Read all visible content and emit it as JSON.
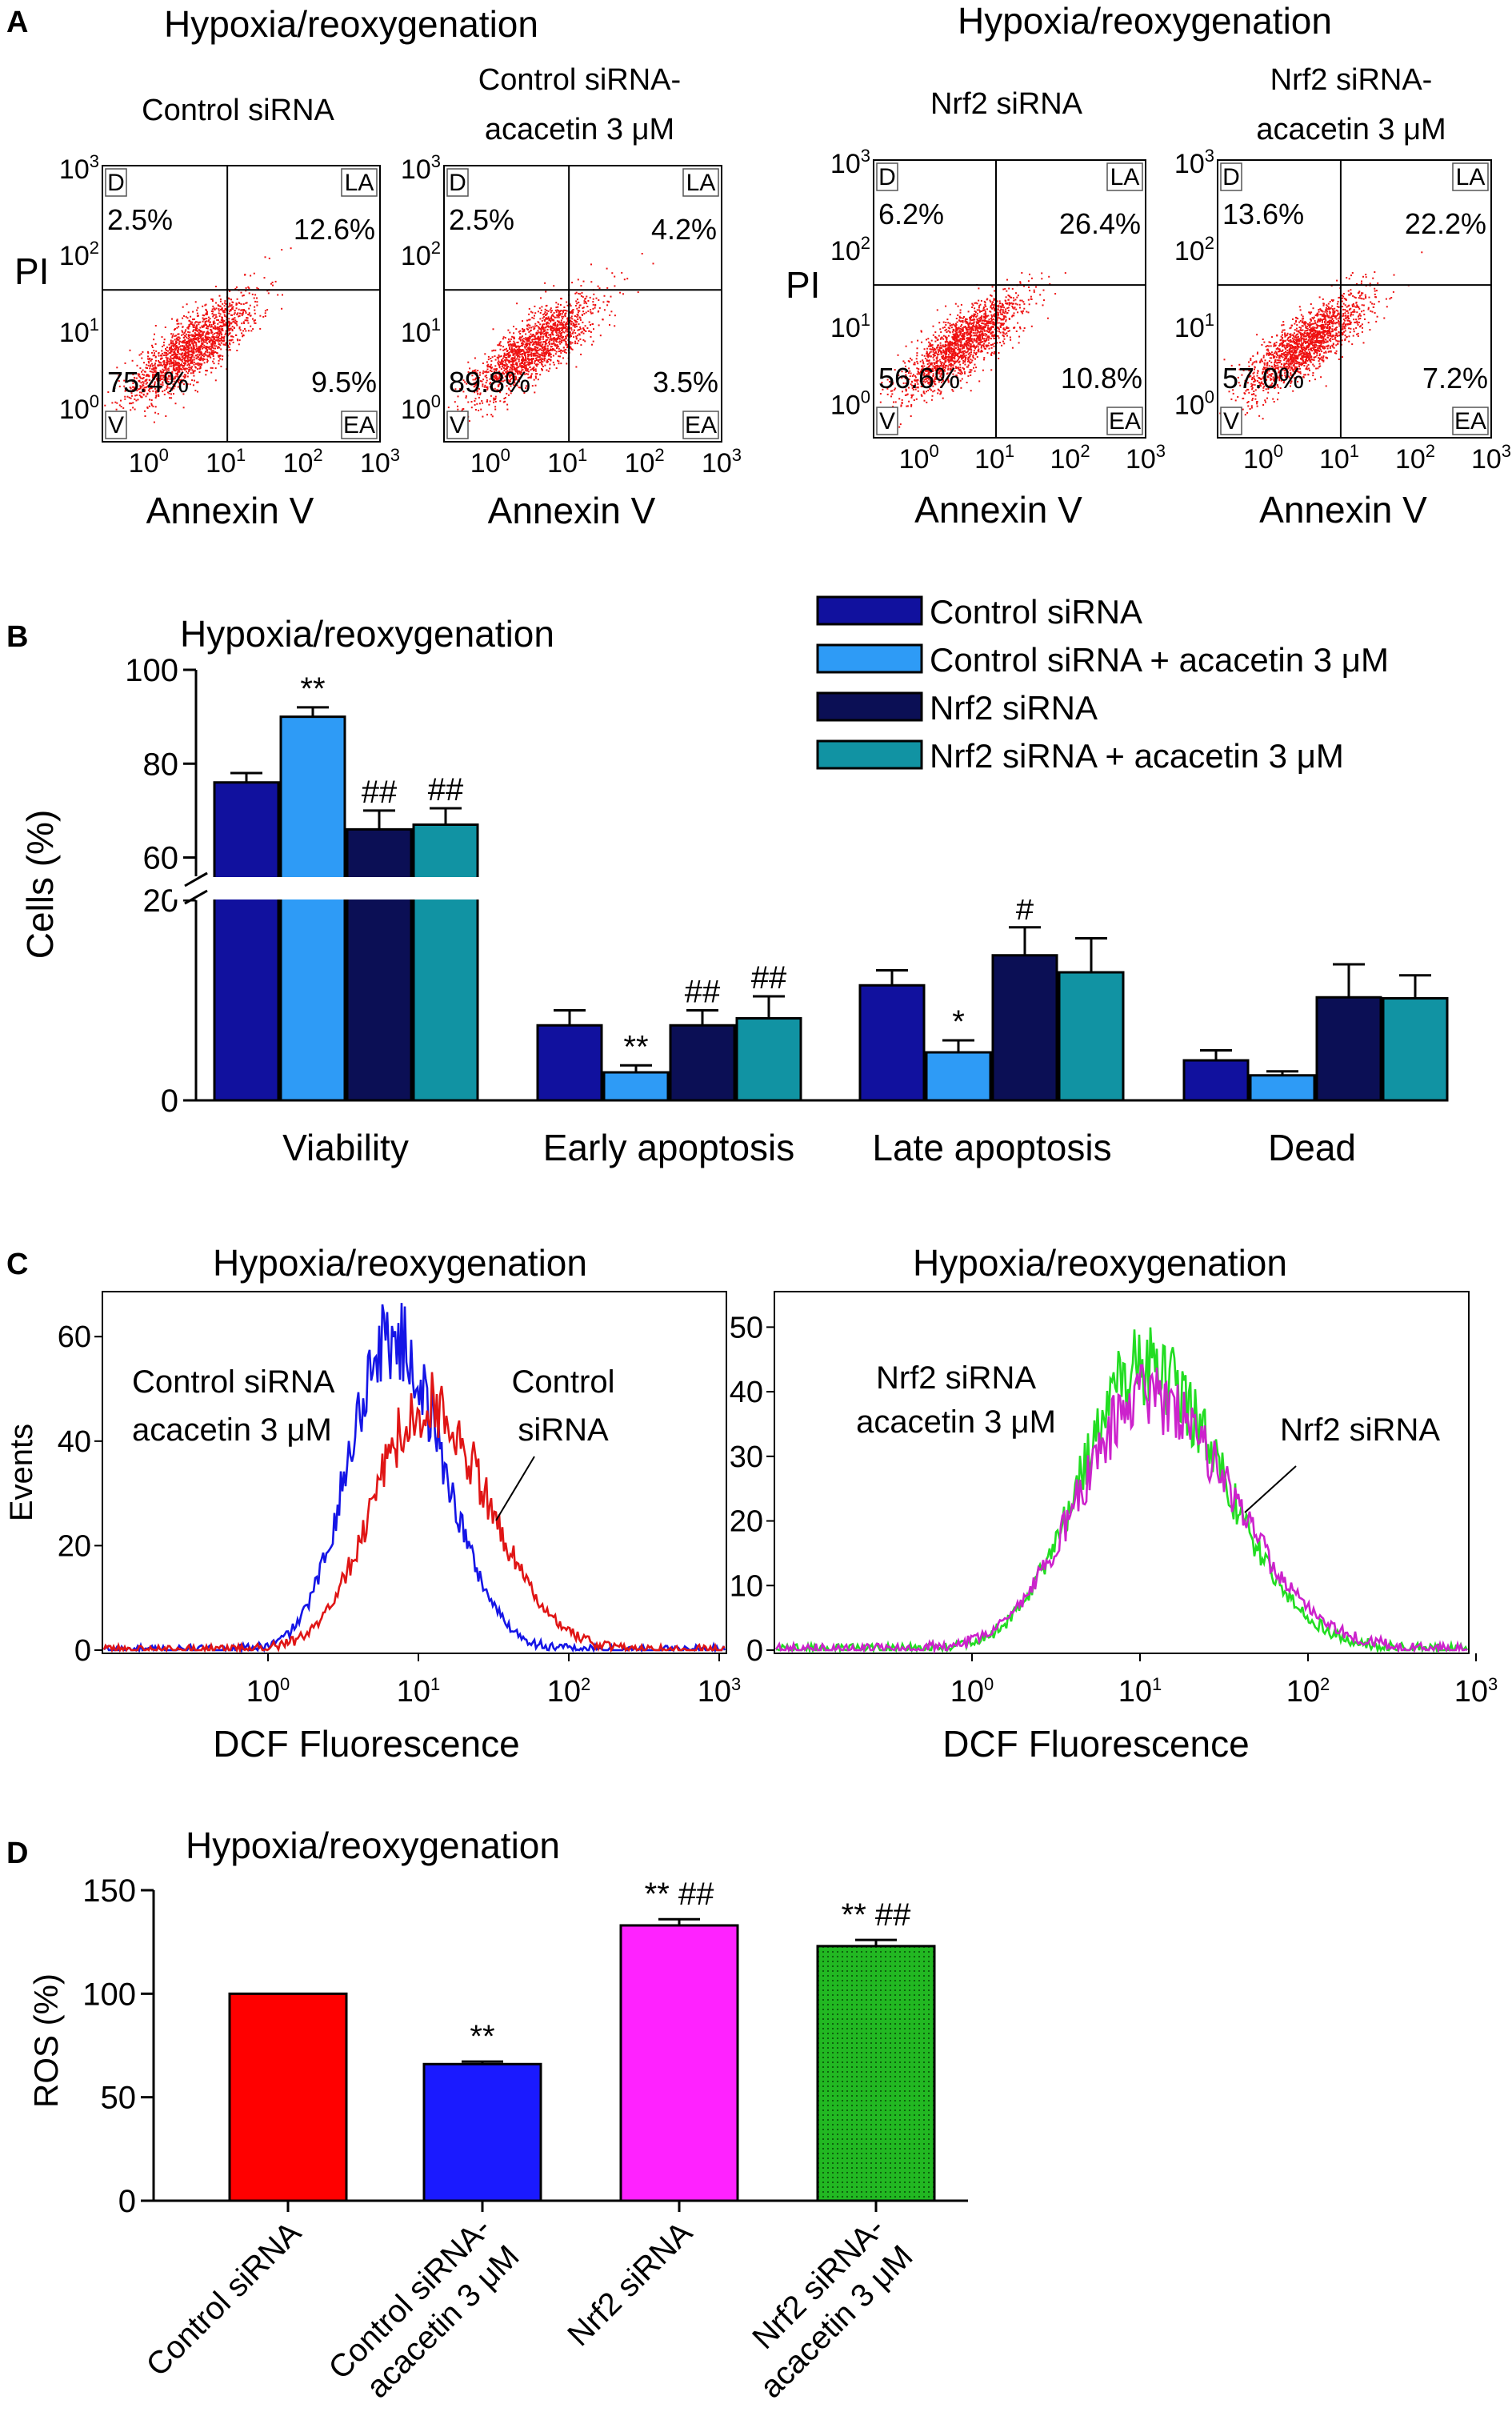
{
  "chart_data": [
    {
      "panel": "A",
      "type": "scatter",
      "group_title": "Hypoxia/reoxygenation",
      "xlabel": "Annexin V",
      "ylabel": "PI",
      "x_ticks": [
        "10",
        "10",
        "10",
        "10"
      ],
      "x_tick_exponents": [
        "0",
        "1",
        "2",
        "3"
      ],
      "y_ticks": [
        "10",
        "10",
        "10",
        "10"
      ],
      "y_tick_exponents": [
        "0",
        "1",
        "2",
        "3"
      ],
      "quadrant_labels": {
        "dead": "D",
        "late": "LA",
        "early": "EA",
        "viable": "V"
      },
      "plots": [
        {
          "title": [
            "Control siRNA"
          ],
          "dead": "2.5%",
          "late": "12.6%",
          "viable": "75.4%",
          "early": "9.5%"
        },
        {
          "title": [
            "Control siRNA-",
            "acacetin 3 μM"
          ],
          "dead": "2.5%",
          "late": "4.2%",
          "viable": "89.8%",
          "early": "3.5%"
        },
        {
          "title": [
            "Nrf2 siRNA"
          ],
          "dead": "6.2%",
          "late": "26.4%",
          "viable": "56.6%",
          "early": "10.8%"
        },
        {
          "title": [
            "Nrf2 siRNA-",
            "acacetin 3 μM"
          ],
          "dead": "13.6%",
          "late": "22.2%",
          "viable": "57.0%",
          "early": "7.2%"
        }
      ]
    },
    {
      "panel": "B",
      "type": "bar",
      "title": "Hypoxia/reoxygenation",
      "ylabel": "Cells (%)",
      "categories": [
        "Viability",
        "Early apoptosis",
        "Late apoptosis",
        "Dead"
      ],
      "y_ticks_upper": [
        "60",
        "80",
        "100"
      ],
      "y_ticks_lower": [
        "0",
        "20"
      ],
      "ylim_lower": [
        0,
        20
      ],
      "ylim_upper": [
        56,
        100
      ],
      "series": [
        {
          "name": "Control siRNA",
          "color": "#11119e",
          "values": [
            76,
            7.5,
            11.5,
            4
          ],
          "errors": [
            2,
            1.5,
            1.5,
            1
          ],
          "annotations": [
            "",
            "",
            "",
            ""
          ]
        },
        {
          "name": "Control siRNA + acacetin 3 μM",
          "color": "#2e9bf6",
          "values": [
            90,
            2.8,
            4.8,
            2.5
          ],
          "errors": [
            2,
            0.7,
            1.2,
            0.4
          ],
          "annotations": [
            "**",
            "**",
            "*",
            ""
          ]
        },
        {
          "name": "Nrf2 siRNA",
          "color": "#0b0f55",
          "values": [
            66,
            7.5,
            14.5,
            10.3
          ],
          "errors": [
            4,
            1.5,
            2.8,
            3.3
          ],
          "annotations": [
            "##",
            "##",
            "#",
            ""
          ]
        },
        {
          "name": "Nrf2 siRNA + acacetin 3 μM",
          "color": "#1193a3",
          "values": [
            67,
            8.2,
            12.8,
            10.2
          ],
          "errors": [
            3.5,
            2.2,
            3.4,
            2.3
          ],
          "annotations": [
            "##",
            "##",
            "",
            ""
          ]
        }
      ]
    },
    {
      "panel": "C",
      "type": "line",
      "xlabel": "DCF Fluorescence",
      "ylabel": "Events",
      "x_ticks": [
        "10",
        "10",
        "10",
        "10"
      ],
      "x_tick_exponents": [
        "0",
        "1",
        "2",
        "3"
      ],
      "plots": [
        {
          "title": "Hypoxia/reoxygenation",
          "y_ticks": [
            "0",
            "20",
            "40",
            "60"
          ],
          "ylim": [
            0,
            68
          ],
          "annotations": [
            [
              "Control siRNA",
              "acacetin 3 μM"
            ],
            [
              "Control",
              "siRNA"
            ]
          ],
          "series": [
            {
              "name": "Control siRNA acacetin 3 μM",
              "color": "#1515e6",
              "peak_x": 6.5,
              "peak_y": 60,
              "log_sigma": 0.28
            },
            {
              "name": "Control siRNA",
              "color": "#e01515",
              "peak_x": 11,
              "peak_y": 47,
              "log_sigma": 0.34
            }
          ]
        },
        {
          "title": "Hypoxia/reoxygenation",
          "y_ticks": [
            "0",
            "10",
            "20",
            "30",
            "40",
            "50"
          ],
          "ylim": [
            0,
            55
          ],
          "annotations": [
            [
              "Nrf2 siRNA",
              "acacetin 3 μM"
            ],
            [
              "Nrf2 siRNA"
            ]
          ],
          "series": [
            {
              "name": "Nrf2 siRNA acacetin 3 μM",
              "color": "#22dd22",
              "peak_x": 10.5,
              "peak_y": 44,
              "log_sigma": 0.38
            },
            {
              "name": "Nrf2 siRNA",
              "color": "#cc22cc",
              "peak_x": 11,
              "peak_y": 39,
              "log_sigma": 0.41
            }
          ]
        }
      ]
    },
    {
      "panel": "D",
      "type": "bar",
      "title": "Hypoxia/reoxygenation",
      "ylabel": "ROS (%)",
      "ylim": [
        0,
        150
      ],
      "y_ticks": [
        "0",
        "50",
        "100",
        "150"
      ],
      "categories": [
        [
          "Control siRNA"
        ],
        [
          "Control siRNA-",
          "acacetin 3 μM"
        ],
        [
          "Nrf2 siRNA"
        ],
        [
          "Nrf2 siRNA-",
          "acacetin 3 μM"
        ]
      ],
      "values": [
        100,
        66,
        133,
        123
      ],
      "errors": [
        0,
        1.2,
        3,
        3
      ],
      "colors": [
        "#ff0000",
        "#1a1aff",
        "#ff22ff",
        "#22b822"
      ],
      "annotations": [
        "",
        "**",
        "** ##",
        "** ##"
      ]
    }
  ]
}
